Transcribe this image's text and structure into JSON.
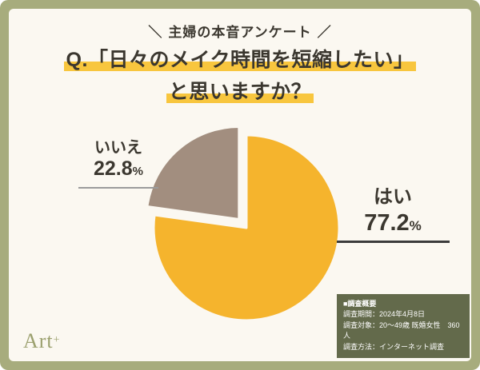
{
  "colors": {
    "olive": "#A7AC7D",
    "cream": "#FBF8F1",
    "ink": "#3B372F",
    "highlight": "#F8C63E",
    "info-bg": "#636A4B",
    "info-text": "#FFFFFF",
    "logo": "#9BA06E",
    "line-no": "#9B9B9B",
    "line-yes": "#3B3B3B"
  },
  "header": {
    "decor_left": "＼",
    "title": "主婦の本音アンケート",
    "decor_right": "／"
  },
  "question": {
    "line1": "Q.「日々のメイク時間を短縮したい」",
    "line2": "と思いますか？"
  },
  "chart_data": {
    "type": "pie",
    "title": "Q.「日々のメイク時間を短縮したい」と思いますか？",
    "start_angle_deg": 0,
    "direction": "clockwise",
    "gap_color": "#FBF8F1",
    "slices": [
      {
        "label": "はい",
        "value": 77.2,
        "unit": "%",
        "color": "#F5B42D",
        "explode": 0
      },
      {
        "label": "いいえ",
        "value": 22.8,
        "unit": "%",
        "color": "#A28E7F",
        "explode": 14
      }
    ]
  },
  "survey_info": {
    "title": "■調査概要",
    "lines": [
      "調査期間：2024年4月8日",
      "調査対象：20〜49歳 既婚女性　360人",
      "調査方法：インターネット調査"
    ]
  },
  "logo": {
    "text": "Art",
    "sup": "+"
  }
}
